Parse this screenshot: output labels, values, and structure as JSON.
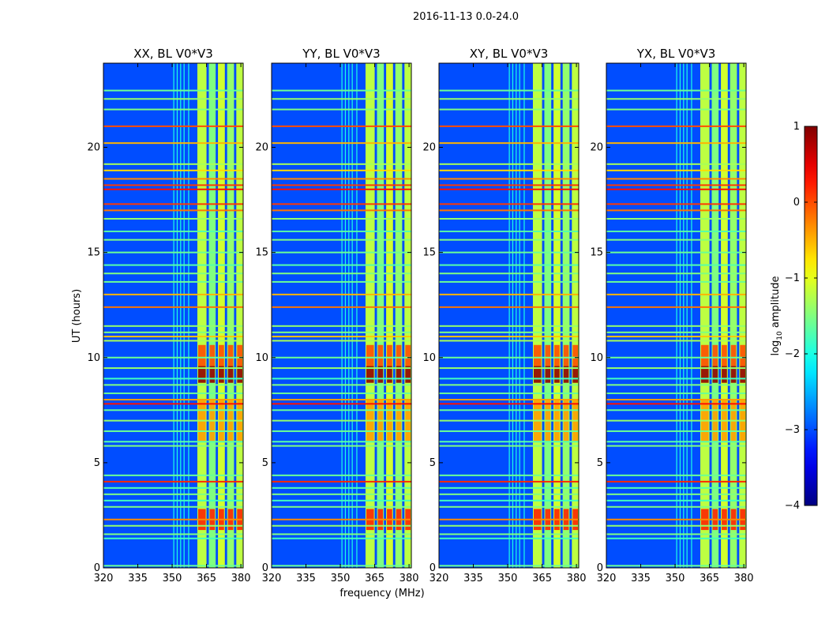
{
  "figure": {
    "suptitle": "2016-11-13 0.0-24.0"
  },
  "chart_data": {
    "type": "heatmap",
    "xlabel": "frequency (MHz)",
    "ylabel": "UT (hours)",
    "xlim": [
      320,
      381
    ],
    "ylim": [
      0,
      24
    ],
    "xticks": [
      320,
      335,
      350,
      365,
      380
    ],
    "yticks": [
      0,
      5,
      10,
      15,
      20
    ],
    "panels": [
      {
        "title": "XX, BL V0*V3"
      },
      {
        "title": "YY, BL V0*V3"
      },
      {
        "title": "XY, BL V0*V3"
      },
      {
        "title": "YX, BL V0*V3"
      }
    ],
    "colorbar": {
      "label": "log10 amplitude",
      "label_base": "log",
      "label_sub": "10",
      "label_rest": " amplitude",
      "range": [
        -4,
        1
      ],
      "ticks": [
        -4,
        -3,
        -2,
        -1,
        0,
        1
      ],
      "tick_labels": [
        "−4",
        "−3",
        "−2",
        "−1",
        "0",
        "1"
      ],
      "colormap": "jet"
    },
    "features": {
      "background_level": -3.0,
      "bright_band_mhz": [
        {
          "range": [
            361,
            365
          ],
          "level": -1.2
        },
        {
          "range": [
            366,
            369
          ],
          "level": -1.5
        },
        {
          "range": [
            370,
            373
          ],
          "level": -1.1
        },
        {
          "range": [
            374,
            377
          ],
          "level": -1.4
        },
        {
          "range": [
            378,
            381
          ],
          "level": -1.2
        }
      ],
      "rfi_hour_lines": [
        {
          "t": 0.1,
          "level": -1.6
        },
        {
          "t": 1.4,
          "level": -1.8
        },
        {
          "t": 1.6,
          "level": -1.5
        },
        {
          "t": 2.0,
          "level": -1.4
        },
        {
          "t": 2.3,
          "level": -0.3
        },
        {
          "t": 2.9,
          "level": -1.5
        },
        {
          "t": 3.2,
          "level": -1.8
        },
        {
          "t": 3.5,
          "level": -1.5
        },
        {
          "t": 3.8,
          "level": -1.7
        },
        {
          "t": 4.1,
          "level": 0.2
        },
        {
          "t": 4.4,
          "level": -1.6
        },
        {
          "t": 5.8,
          "level": -1.5
        },
        {
          "t": 6.0,
          "level": -1.7
        },
        {
          "t": 6.5,
          "level": -1.6
        },
        {
          "t": 7.0,
          "level": -1.4
        },
        {
          "t": 7.5,
          "level": -1.6
        },
        {
          "t": 7.8,
          "level": 0.3
        },
        {
          "t": 8.0,
          "level": -0.4
        },
        {
          "t": 8.3,
          "level": -1.6
        },
        {
          "t": 8.7,
          "level": -1.5
        },
        {
          "t": 9.0,
          "level": -1.8
        },
        {
          "t": 9.5,
          "level": -1.4
        },
        {
          "t": 10.0,
          "level": -1.6
        },
        {
          "t": 10.8,
          "level": -1.3
        },
        {
          "t": 11.0,
          "level": -0.6
        },
        {
          "t": 11.2,
          "level": -1.5
        },
        {
          "t": 11.5,
          "level": -1.4
        },
        {
          "t": 12.4,
          "level": -0.2
        },
        {
          "t": 13.0,
          "level": -0.5
        },
        {
          "t": 13.6,
          "level": -1.6
        },
        {
          "t": 14.0,
          "level": -1.5
        },
        {
          "t": 14.4,
          "level": -1.7
        },
        {
          "t": 15.0,
          "level": -1.6
        },
        {
          "t": 15.6,
          "level": -1.5
        },
        {
          "t": 16.0,
          "level": -1.7
        },
        {
          "t": 16.6,
          "level": -1.4
        },
        {
          "t": 17.0,
          "level": -0.2
        },
        {
          "t": 17.3,
          "level": 0.1
        },
        {
          "t": 18.0,
          "level": 0.3
        },
        {
          "t": 18.2,
          "level": 0.1
        },
        {
          "t": 18.5,
          "level": -0.3
        },
        {
          "t": 18.9,
          "level": -0.7
        },
        {
          "t": 19.2,
          "level": -1.3
        },
        {
          "t": 20.2,
          "level": -0.5
        },
        {
          "t": 21.0,
          "level": 0.0
        },
        {
          "t": 21.8,
          "level": -1.5
        },
        {
          "t": 22.3,
          "level": -1.4
        },
        {
          "t": 22.7,
          "level": -1.6
        }
      ],
      "rfi_freq_lines_mhz": [
        350.5,
        352.0,
        353.5,
        355.0,
        357.0
      ],
      "hot_blocks": [
        {
          "t": [
            1.8,
            2.8
          ],
          "level": 0.2
        },
        {
          "t": [
            6.0,
            8.0
          ],
          "level": -0.4
        },
        {
          "t": [
            8.8,
            9.6
          ],
          "level": 0.9
        },
        {
          "t": [
            9.6,
            10.6
          ],
          "level": 0.0
        }
      ]
    }
  }
}
